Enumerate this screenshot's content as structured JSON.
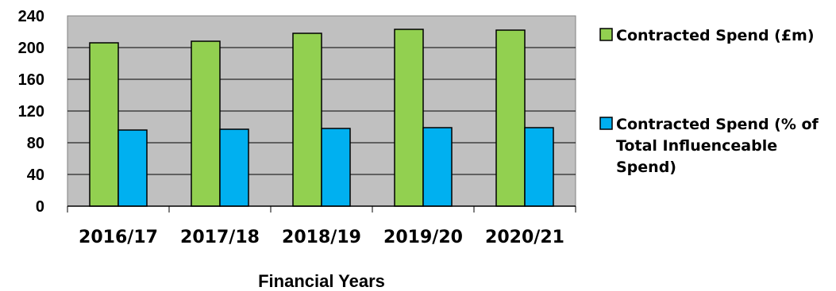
{
  "chart_data": {
    "type": "bar",
    "categories": [
      "2016/17",
      "2017/18",
      "2018/19",
      "2019/20",
      "2020/21"
    ],
    "series": [
      {
        "name": "Contracted Spend (£m)",
        "values": [
          206,
          208,
          218,
          223,
          222
        ],
        "color": "#92D050",
        "legend_lines": [
          "Contracted Spend (£m)"
        ]
      },
      {
        "name": "Contracted Spend (% of Total Influenceable Spend)",
        "values": [
          96,
          97,
          98,
          99,
          99
        ],
        "color": "#00B0F0",
        "legend_lines": [
          "Contracted Spend (% of",
          "Total Influenceable",
          "Spend)"
        ]
      }
    ],
    "title": "",
    "xlabel": "Financial Years",
    "ylabel": "",
    "ylim": [
      0,
      240
    ],
    "yticks": [
      0,
      40,
      80,
      120,
      160,
      200,
      240
    ],
    "grid": true,
    "plot_background": "#C0C0C0",
    "legend_position": "right"
  }
}
